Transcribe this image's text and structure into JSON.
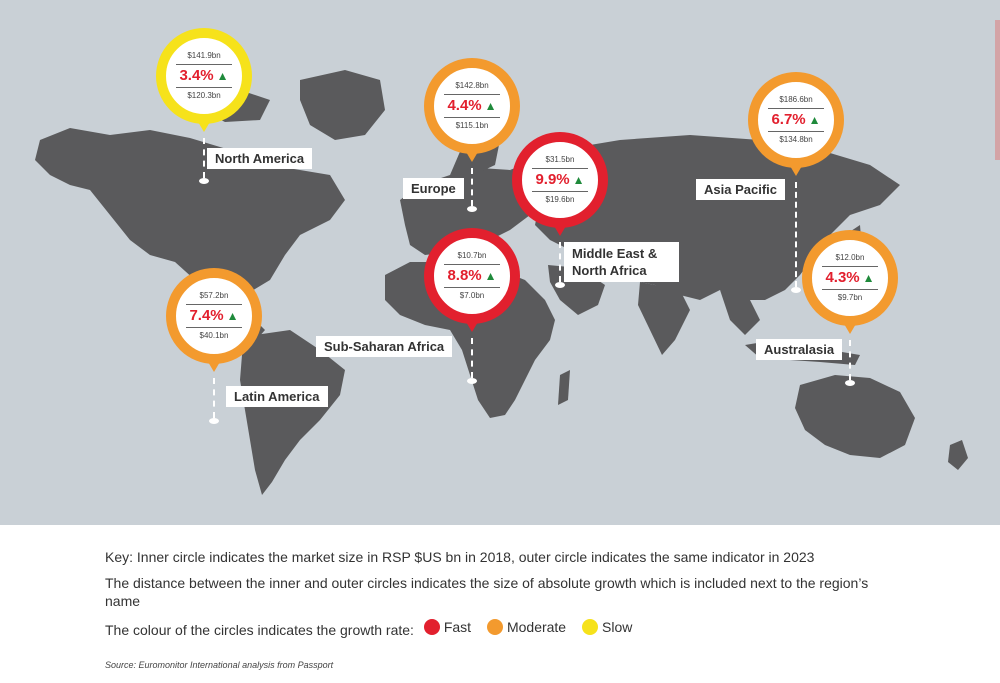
{
  "colors": {
    "fast": "#e2202e",
    "moderate": "#f39a2e",
    "slow": "#f6e21b",
    "land": "#5a5a5c",
    "ocean": "#c9d0d6"
  },
  "regions": [
    {
      "id": "north-america",
      "name": "North America",
      "value_2023": "$141.9bn",
      "growth_rate": "3.4%",
      "value_2018": "$120.3bn",
      "growth_class": "slow"
    },
    {
      "id": "europe",
      "name": "Europe",
      "value_2023": "$142.8bn",
      "growth_rate": "4.4%",
      "value_2018": "$115.1bn",
      "growth_class": "moderate"
    },
    {
      "id": "middle-east-north-africa",
      "name": "Middle East & North Africa",
      "value_2023": "$31.5bn",
      "growth_rate": "9.9%",
      "value_2018": "$19.6bn",
      "growth_class": "fast"
    },
    {
      "id": "asia-pacific",
      "name": "Asia Pacific",
      "value_2023": "$186.6bn",
      "growth_rate": "6.7%",
      "value_2018": "$134.8bn",
      "growth_class": "moderate"
    },
    {
      "id": "sub-saharan-africa",
      "name": "Sub-Saharan Africa",
      "value_2023": "$10.7bn",
      "growth_rate": "8.8%",
      "value_2018": "$7.0bn",
      "growth_class": "fast"
    },
    {
      "id": "latin-america",
      "name": "Latin America",
      "value_2023": "$57.2bn",
      "growth_rate": "7.4%",
      "value_2018": "$40.1bn",
      "growth_class": "moderate"
    },
    {
      "id": "australasia",
      "name": "Australasia",
      "value_2023": "$12.0bn",
      "growth_rate": "4.3%",
      "value_2018": "$9.7bn",
      "growth_class": "moderate"
    }
  ],
  "key": {
    "line1": "Key: Inner circle indicates the market size in RSP $US bn in 2018, outer circle indicates the same indicator in 2023",
    "line2": "The distance between the inner and outer circles indicates the size of absolute growth which is included next to the region’s name",
    "line3_prefix": "The colour of the circles indicates the growth rate:",
    "legend": [
      {
        "label": "Fast",
        "class": "fast"
      },
      {
        "label": "Moderate",
        "class": "moderate"
      },
      {
        "label": "Slow",
        "class": "slow"
      }
    ]
  },
  "source": "Source: Euromonitor International analysis from Passport"
}
